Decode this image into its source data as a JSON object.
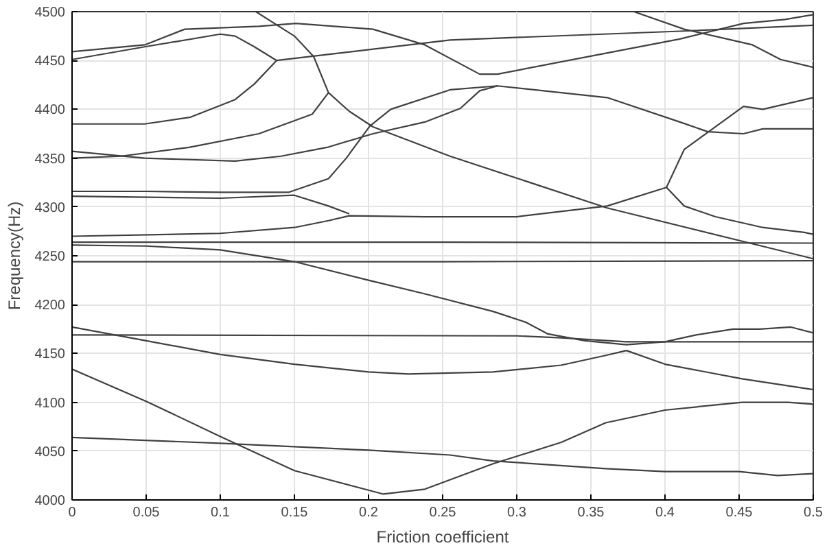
{
  "chart_data": {
    "type": "line",
    "xlabel": "Friction coefficient",
    "ylabel": "Frequency(Hz)",
    "xlim": [
      0,
      0.5
    ],
    "xticks": [
      0,
      0.05,
      0.1,
      0.15,
      0.2,
      0.25,
      0.3,
      0.35,
      0.4,
      0.45,
      0.5
    ],
    "ylim": [
      4000,
      4500
    ],
    "yticks": [
      4000,
      4050,
      4100,
      4150,
      4200,
      4250,
      4300,
      4350,
      4400,
      4450,
      4500
    ],
    "grid": true,
    "marker": "none",
    "line_style": "solid",
    "series": [
      {
        "color": "#404040",
        "x": [
          0,
          0.049,
          0.076,
          0.126,
          0.151,
          0.203,
          0.238,
          0.275,
          0.287,
          0.41,
          0.453,
          0.481,
          0.5
        ],
        "values": [
          4459,
          4466,
          4482,
          4485,
          4488,
          4482,
          4466,
          4436,
          4436,
          4472,
          4488,
          4492,
          4497
        ]
      },
      {
        "color": "#404040",
        "x": [
          0,
          0.049,
          0.1,
          0.11,
          0.123,
          0.138,
          0.255,
          0.41,
          0.5
        ],
        "values": [
          4451,
          4464,
          4477,
          4475,
          4464,
          4450,
          4471,
          4480,
          4486
        ]
      },
      {
        "color": "#404040",
        "x": [
          0,
          0.049,
          0.08,
          0.11,
          0.123,
          0.138
        ],
        "values": [
          4385,
          4385,
          4392,
          4410,
          4426,
          4450
        ]
      },
      {
        "color": "#404040",
        "x": [
          0.124,
          0.15,
          0.163,
          0.173,
          0.187,
          0.203,
          0.255,
          0.361,
          0.5
        ],
        "values": [
          4500,
          4475,
          4454,
          4417,
          4398,
          4382,
          4352,
          4299,
          4247
        ]
      },
      {
        "color": "#404040",
        "x": [
          0.379,
          0.413,
          0.459,
          0.478,
          0.5
        ],
        "values": [
          4500,
          4482,
          4466,
          4451,
          4443
        ]
      },
      {
        "color": "#404040",
        "x": [
          0,
          0.049,
          0.11,
          0.141,
          0.172,
          0.203,
          0.238,
          0.262,
          0.275,
          0.287
        ],
        "values": [
          4357,
          4350,
          4347,
          4352,
          4361,
          4375,
          4387,
          4401,
          4419,
          4424
        ]
      },
      {
        "color": "#404040",
        "x": [
          0,
          0.033,
          0.079,
          0.126,
          0.162,
          0.173
        ],
        "values": [
          4350,
          4352,
          4361,
          4375,
          4395,
          4417
        ]
      },
      {
        "color": "#404040",
        "x": [
          0,
          0.05,
          0.1,
          0.146,
          0.173,
          0.185,
          0.201,
          0.215,
          0.255,
          0.287,
          0.361,
          0.41,
          0.429,
          0.453,
          0.466,
          0.5
        ],
        "values": [
          4316,
          4316,
          4315,
          4315,
          4329,
          4350,
          4383,
          4400,
          4420,
          4424,
          4412,
          4387,
          4377,
          4375,
          4380,
          4380
        ]
      },
      {
        "color": "#404040",
        "x": [
          0,
          0.1,
          0.15,
          0.173,
          0.187
        ],
        "values": [
          4311,
          4309,
          4312,
          4301,
          4293
        ]
      },
      {
        "color": "#404040",
        "x": [
          0,
          0.1,
          0.15,
          0.173,
          0.187,
          0.238,
          0.3,
          0.361,
          0.401,
          0.413,
          0.453,
          0.466,
          0.5
        ],
        "values": [
          4270,
          4273,
          4279,
          4286,
          4291,
          4290,
          4290,
          4301,
          4320,
          4359,
          4403,
          4400,
          4412
        ]
      },
      {
        "color": "#404040",
        "x": [
          0.401,
          0.413,
          0.434,
          0.466,
          0.494,
          0.5
        ],
        "values": [
          4320,
          4301,
          4290,
          4279,
          4274,
          4272
        ]
      },
      {
        "color": "#404040",
        "x": [
          0,
          0.25,
          0.5
        ],
        "values": [
          4264,
          4264,
          4263
        ]
      },
      {
        "color": "#404040",
        "x": [
          0,
          0.25,
          0.5
        ],
        "values": [
          4244,
          4244,
          4245
        ]
      },
      {
        "color": "#404040",
        "x": [
          0,
          0.05,
          0.1,
          0.15,
          0.2,
          0.238,
          0.284,
          0.306,
          0.321,
          0.346,
          0.374,
          0.4,
          0.421,
          0.446,
          0.464,
          0.485,
          0.5
        ],
        "values": [
          4261,
          4260,
          4256,
          4244,
          4225,
          4211,
          4193,
          4182,
          4170,
          4163,
          4159,
          4162,
          4169,
          4175,
          4175,
          4177,
          4171
        ]
      },
      {
        "color": "#404040",
        "x": [
          0,
          0.3,
          0.33,
          0.374,
          0.5
        ],
        "values": [
          4169,
          4168,
          4166,
          4162,
          4162
        ]
      },
      {
        "color": "#404040",
        "x": [
          0,
          0.05,
          0.1,
          0.15,
          0.2,
          0.227,
          0.255,
          0.284,
          0.33,
          0.36,
          0.374,
          0.4,
          0.452,
          0.5
        ],
        "values": [
          4177,
          4163,
          4149,
          4139,
          4131,
          4129,
          4130,
          4131,
          4138,
          4148,
          4153,
          4139,
          4124,
          4113
        ]
      },
      {
        "color": "#404040",
        "x": [
          0,
          0.05,
          0.1,
          0.15,
          0.2,
          0.21,
          0.238,
          0.284,
          0.33,
          0.36,
          0.4,
          0.452,
          0.483,
          0.5
        ],
        "values": [
          4134,
          4101,
          4065,
          4030,
          4010,
          4006,
          4011,
          4037,
          4059,
          4079,
          4092,
          4100,
          4100,
          4098
        ]
      },
      {
        "color": "#404040",
        "x": [
          0,
          0.1,
          0.2,
          0.255,
          0.284,
          0.36,
          0.4,
          0.45,
          0.476,
          0.5
        ],
        "values": [
          4064,
          4058,
          4051,
          4046,
          4040,
          4032,
          4029,
          4029,
          4025,
          4027
        ]
      }
    ]
  }
}
